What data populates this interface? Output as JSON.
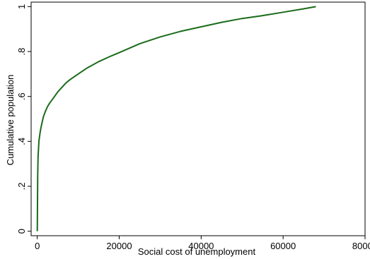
{
  "chart_data": {
    "type": "line",
    "xlabel": "Social cost of unemployment",
    "ylabel": "Cumulative population",
    "xlim": [
      -1500,
      80000
    ],
    "ylim": [
      -0.02,
      1.02
    ],
    "x_ticks": [
      0,
      20000,
      40000,
      60000,
      80000
    ],
    "x_tick_labels": [
      "0",
      "20000",
      "40000",
      "60000",
      "80000"
    ],
    "y_ticks": [
      0,
      0.2,
      0.4,
      0.6,
      0.8,
      1
    ],
    "y_tick_labels": [
      "0",
      ".2",
      ".4",
      ".6",
      ".8",
      "1"
    ],
    "grid": false,
    "line_color": "#1a6b1a",
    "series": [
      {
        "x": [
          0,
          100,
          200,
          400,
          700,
          1000,
          1500,
          2000,
          2500,
          3000,
          4000,
          5000,
          6000,
          7000,
          8000,
          10000,
          12000,
          15000,
          18000,
          20000,
          25000,
          30000,
          35000,
          40000,
          45000,
          50000,
          55000,
          60000,
          65000,
          68000
        ],
        "y": [
          0.0,
          0.25,
          0.33,
          0.4,
          0.44,
          0.47,
          0.51,
          0.535,
          0.555,
          0.57,
          0.595,
          0.62,
          0.64,
          0.66,
          0.675,
          0.7,
          0.725,
          0.755,
          0.78,
          0.795,
          0.835,
          0.865,
          0.89,
          0.91,
          0.93,
          0.947,
          0.96,
          0.975,
          0.99,
          1.0
        ]
      }
    ]
  }
}
